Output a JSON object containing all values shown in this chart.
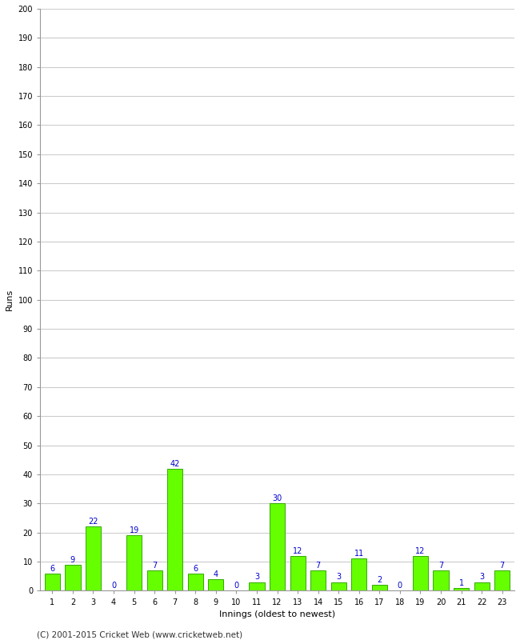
{
  "title": "",
  "xlabel": "Innings (oldest to newest)",
  "ylabel": "Runs",
  "ylim": [
    0,
    200
  ],
  "yticks": [
    0,
    10,
    20,
    30,
    40,
    50,
    60,
    70,
    80,
    90,
    100,
    110,
    120,
    130,
    140,
    150,
    160,
    170,
    180,
    190,
    200
  ],
  "categories": [
    1,
    2,
    3,
    4,
    5,
    6,
    7,
    8,
    9,
    10,
    11,
    12,
    13,
    14,
    15,
    16,
    17,
    18,
    19,
    20,
    21,
    22,
    23
  ],
  "values": [
    6,
    9,
    22,
    0,
    19,
    7,
    42,
    6,
    4,
    0,
    3,
    30,
    12,
    7,
    3,
    11,
    2,
    0,
    12,
    7,
    1,
    3,
    7
  ],
  "bar_color": "#66ff00",
  "bar_edge_color": "#33aa00",
  "label_color": "#0000cc",
  "grid_color": "#cccccc",
  "background_color": "#ffffff",
  "footer": "(C) 2001-2015 Cricket Web (www.cricketweb.net)",
  "axis_label_fontsize": 8,
  "tick_fontsize": 7,
  "bar_label_fontsize": 7,
  "footer_fontsize": 7.5
}
